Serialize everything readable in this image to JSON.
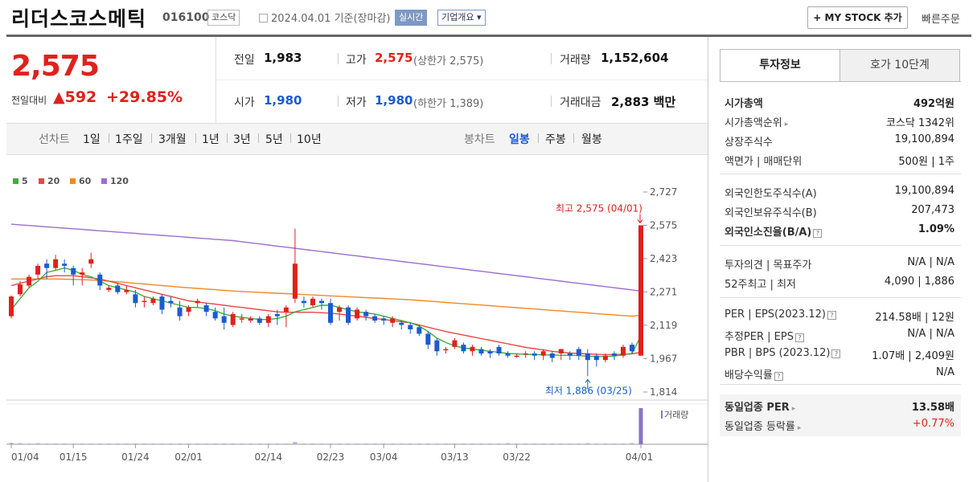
{
  "header": {
    "name": "리더스코스메틱",
    "code": "016100",
    "market": "코스닥",
    "date_text": "2024.04.01  기준(장마감)",
    "realtime": "실시간",
    "overview": "기업개요 ▾",
    "mystock": "+ MY STOCK 추가",
    "quick": "빠른주문"
  },
  "price": {
    "current": "2,575",
    "change_label": "전일대비",
    "change": "▲592",
    "rate": "+29.85%"
  },
  "quote": {
    "prev_label": "전일",
    "prev": "1,983",
    "open_label": "시가",
    "open": "1,980",
    "high_label": "고가",
    "high": "2,575",
    "upper_limit": "(상한가 2,575)",
    "low_label": "저가",
    "low": "1,980",
    "lower_limit": "(하한가 1,389)",
    "volume_label": "거래량",
    "volume": "1,152,604",
    "amount_label": "거래대금",
    "amount": "2,883 백만"
  },
  "period": {
    "line_label": "선차트",
    "line_items": [
      "1일",
      "1주일",
      "3개월",
      "1년",
      "3년",
      "5년",
      "10년"
    ],
    "candle_label": "봉차트",
    "candle_items": [
      "일봉",
      "주봉",
      "월봉"
    ],
    "active": "일봉"
  },
  "colors": {
    "ma5": "#3cae3c",
    "ma20": "#ee4444",
    "ma60": "#f08a24",
    "ma120": "#9b6fd0",
    "up": "#e0211d",
    "down": "#1a5bd1"
  },
  "chart_data": {
    "type": "candlestick",
    "legend": [
      "5",
      "20",
      "60",
      "120"
    ],
    "y_ticks": [
      "2,727",
      "2,575",
      "2,423",
      "2,271",
      "2,119",
      "1,967",
      "1,814"
    ],
    "ylim": [
      1814,
      2727
    ],
    "x_ticks": [
      "01/04",
      "01/15",
      "01/24",
      "02/01",
      "02/14",
      "02/23",
      "03/04",
      "03/13",
      "03/22",
      "04/01"
    ],
    "high_annotation": "최고 2,575 (04/01)",
    "low_annotation": "최저 1,886 (03/25)",
    "volume_label": "거래량",
    "candles": [
      [
        2160,
        2250,
        2150,
        2255
      ],
      [
        2260,
        2305,
        2250,
        2320
      ],
      [
        2300,
        2340,
        2290,
        2350
      ],
      [
        2350,
        2390,
        2330,
        2400
      ],
      [
        2400,
        2380,
        2330,
        2420
      ],
      [
        2380,
        2420,
        2370,
        2440
      ],
      [
        2400,
        2390,
        2360,
        2420
      ],
      [
        2380,
        2350,
        2300,
        2390
      ],
      [
        2350,
        2360,
        2300,
        2380
      ],
      [
        2400,
        2420,
        2380,
        2450
      ],
      [
        2350,
        2300,
        2280,
        2360
      ],
      [
        2280,
        2290,
        2270,
        2300
      ],
      [
        2300,
        2270,
        2260,
        2310
      ],
      [
        2270,
        2280,
        2260,
        2300
      ],
      [
        2260,
        2220,
        2200,
        2280
      ],
      [
        2230,
        2230,
        2200,
        2250
      ],
      [
        2220,
        2240,
        2210,
        2250
      ],
      [
        2250,
        2190,
        2170,
        2260
      ],
      [
        2230,
        2220,
        2200,
        2250
      ],
      [
        2200,
        2160,
        2140,
        2230
      ],
      [
        2180,
        2200,
        2160,
        2210
      ],
      [
        2220,
        2230,
        2200,
        2240
      ],
      [
        2210,
        2180,
        2160,
        2220
      ],
      [
        2180,
        2150,
        2140,
        2200
      ],
      [
        2160,
        2130,
        2100,
        2200
      ],
      [
        2120,
        2170,
        2110,
        2180
      ],
      [
        2150,
        2150,
        2130,
        2170
      ],
      [
        2140,
        2150,
        2130,
        2160
      ],
      [
        2150,
        2130,
        2120,
        2160
      ],
      [
        2130,
        2160,
        2110,
        2170
      ],
      [
        2170,
        2160,
        2120,
        2190
      ],
      [
        2180,
        2200,
        2110,
        2210
      ],
      [
        2240,
        2400,
        2220,
        2560
      ],
      [
        2230,
        2220,
        2200,
        2250
      ],
      [
        2210,
        2240,
        2200,
        2250
      ],
      [
        2230,
        2220,
        2190,
        2240
      ],
      [
        2220,
        2130,
        2120,
        2240
      ],
      [
        2180,
        2200,
        2140,
        2210
      ],
      [
        2200,
        2130,
        2120,
        2210
      ],
      [
        2150,
        2190,
        2140,
        2200
      ],
      [
        2180,
        2160,
        2140,
        2190
      ],
      [
        2160,
        2140,
        2130,
        2170
      ],
      [
        2150,
        2140,
        2120,
        2160
      ],
      [
        2130,
        2150,
        2110,
        2160
      ],
      [
        2130,
        2120,
        2100,
        2140
      ],
      [
        2120,
        2100,
        2080,
        2130
      ],
      [
        2110,
        2080,
        2070,
        2120
      ],
      [
        2080,
        2030,
        2010,
        2090
      ],
      [
        2050,
        2000,
        1980,
        2060
      ],
      [
        2010,
        2010,
        1990,
        2020
      ],
      [
        2020,
        2050,
        2010,
        2060
      ],
      [
        2030,
        2000,
        1990,
        2040
      ],
      [
        2000,
        2020,
        1980,
        2030
      ],
      [
        2010,
        1990,
        1980,
        2020
      ],
      [
        2000,
        1990,
        1970,
        2010
      ],
      [
        2020,
        1990,
        1980,
        2030
      ],
      [
        1990,
        1980,
        1970,
        2000
      ],
      [
        1980,
        1980,
        1970,
        1990
      ],
      [
        1990,
        1990,
        1970,
        2000
      ],
      [
        1990,
        1980,
        1960,
        2000
      ],
      [
        1980,
        2000,
        1960,
        2010
      ],
      [
        1990,
        1970,
        1950,
        2000
      ],
      [
        1990,
        2010,
        1960,
        2010
      ],
      [
        1990,
        1980,
        1960,
        2000
      ],
      [
        2010,
        1980,
        1960,
        2020
      ],
      [
        1990,
        1960,
        1886,
        2010
      ],
      [
        1980,
        1960,
        1930,
        1990
      ],
      [
        1960,
        1980,
        1950,
        1990
      ],
      [
        1990,
        1980,
        1960,
        2000
      ],
      [
        1980,
        2020,
        1970,
        2030
      ],
      [
        2030,
        2000,
        1990,
        2040
      ],
      [
        1980,
        2575,
        1980,
        2575
      ]
    ],
    "ma5": [
      2190,
      2240,
      2290,
      2320,
      2360,
      2370,
      2380,
      2370,
      2350,
      2340,
      2320,
      2300,
      2290,
      2280,
      2270,
      2250,
      2240,
      2230,
      2220,
      2210,
      2200,
      2200,
      2195,
      2185,
      2170,
      2160,
      2155,
      2150,
      2145,
      2145,
      2150,
      2160,
      2180,
      2190,
      2200,
      2210,
      2210,
      2200,
      2190,
      2180,
      2175,
      2170,
      2160,
      2150,
      2140,
      2130,
      2115,
      2090,
      2060,
      2040,
      2025,
      2015,
      2010,
      2005,
      2000,
      1995,
      1990,
      1988,
      1986,
      1985,
      1984,
      1983,
      1982,
      1982,
      1980,
      1978,
      1976,
      1976,
      1978,
      1985,
      1990,
      2070
    ],
    "ma20": [
      2300,
      2310,
      2320,
      2330,
      2340,
      2345,
      2345,
      2345,
      2340,
      2335,
      2330,
      2320,
      2310,
      2300,
      2290,
      2280,
      2270,
      2260,
      2250,
      2240,
      2230,
      2225,
      2220,
      2215,
      2210,
      2205,
      2200,
      2195,
      2190,
      2185,
      2180,
      2178,
      2178,
      2178,
      2178,
      2176,
      2174,
      2170,
      2165,
      2160,
      2155,
      2150,
      2145,
      2140,
      2135,
      2130,
      2120,
      2110,
      2100,
      2090,
      2082,
      2074,
      2066,
      2058,
      2050,
      2042,
      2034,
      2026,
      2018,
      2012,
      2006,
      2000,
      1996,
      1992,
      1990,
      1988,
      1986,
      1985,
      1985,
      1986,
      1988,
      1995
    ],
    "ma60": [
      2330,
      2330,
      2330,
      2330,
      2330,
      2330,
      2329,
      2328,
      2327,
      2325,
      2323,
      2320,
      2317,
      2314,
      2310,
      2307,
      2303,
      2300,
      2297,
      2293,
      2290,
      2287,
      2284,
      2281,
      2278,
      2275,
      2273,
      2271,
      2269,
      2267,
      2265,
      2263,
      2261,
      2259,
      2257,
      2255,
      2253,
      2251,
      2249,
      2247,
      2245,
      2243,
      2241,
      2239,
      2237,
      2235,
      2232,
      2229,
      2226,
      2223,
      2220,
      2217,
      2214,
      2211,
      2208,
      2205,
      2202,
      2199,
      2196,
      2193,
      2190,
      2187,
      2184,
      2181,
      2178,
      2175,
      2172,
      2169,
      2166,
      2163,
      2160,
      2165
    ],
    "ma120": [
      2580,
      2577,
      2574,
      2571,
      2568,
      2565,
      2562,
      2559,
      2556,
      2553,
      2550,
      2547,
      2544,
      2541,
      2538,
      2535,
      2532,
      2529,
      2526,
      2523,
      2520,
      2517,
      2514,
      2511,
      2508,
      2505,
      2500,
      2495,
      2490,
      2485,
      2480,
      2475,
      2470,
      2465,
      2460,
      2455,
      2450,
      2445,
      2440,
      2435,
      2430,
      2425,
      2420,
      2415,
      2410,
      2405,
      2400,
      2395,
      2390,
      2385,
      2380,
      2375,
      2370,
      2365,
      2360,
      2355,
      2350,
      2345,
      2340,
      2335,
      2330,
      2325,
      2320,
      2315,
      2310,
      2305,
      2300,
      2295,
      2290,
      2285,
      2280,
      2275
    ],
    "volume": [
      4,
      3,
      2,
      3,
      2,
      2,
      2,
      2,
      2,
      2,
      2,
      2,
      2,
      2,
      2,
      2,
      2,
      2,
      2,
      2,
      2,
      2,
      2,
      2,
      2,
      2,
      2,
      2,
      2,
      2,
      2,
      2,
      6,
      2,
      2,
      2,
      2,
      2,
      2,
      2,
      2,
      2,
      2,
      2,
      2,
      2,
      2,
      2,
      2,
      2,
      2,
      2,
      2,
      2,
      2,
      2,
      3,
      2,
      2,
      2,
      2,
      2,
      2,
      2,
      2,
      3,
      2,
      2,
      2,
      2,
      3,
      100
    ]
  },
  "invest": {
    "tab_invest": "투자정보",
    "tab_hoga": "호가 10단계",
    "g1": [
      {
        "label": "시가총액",
        "value": "492억원",
        "bold": true
      },
      {
        "label": "시가총액순위",
        "value": "코스닥 1342위",
        "arrow": true
      },
      {
        "label": "상장주식수",
        "value": "19,100,894"
      },
      {
        "label": "액면가 | 매매단위",
        "value": "500원 | 1주"
      }
    ],
    "g2": [
      {
        "label": "외국인한도주식수(A)",
        "value": "19,100,894"
      },
      {
        "label": "외국인보유주식수(B)",
        "value": "207,473"
      },
      {
        "label": "외국인소진율(B/A)",
        "value": "1.09%",
        "bold": true,
        "q": true
      }
    ],
    "g3": [
      {
        "label": "투자의견 | 목표주가",
        "value": "N/A | N/A"
      },
      {
        "label": "52주최고 | 최저",
        "value": "4,090 | 1,886"
      }
    ],
    "g4": [
      {
        "label": "PER | EPS(2023.12)",
        "value": "214.58배 | 12원",
        "q": true
      },
      {
        "label": "추정PER | EPS",
        "value": "N/A | N/A",
        "q": true
      },
      {
        "label": "PBR | BPS (2023.12)",
        "value": "1.07배 | 2,409원",
        "q": true
      },
      {
        "label": "배당수익률",
        "value": "N/A",
        "q": true
      }
    ],
    "g5": [
      {
        "label": "동일업종 PER",
        "value": "13.58배",
        "bold": true,
        "arrow": true
      },
      {
        "label": "동일업종 등락률",
        "value": "+0.77%",
        "red": true,
        "arrow": true
      }
    ]
  }
}
